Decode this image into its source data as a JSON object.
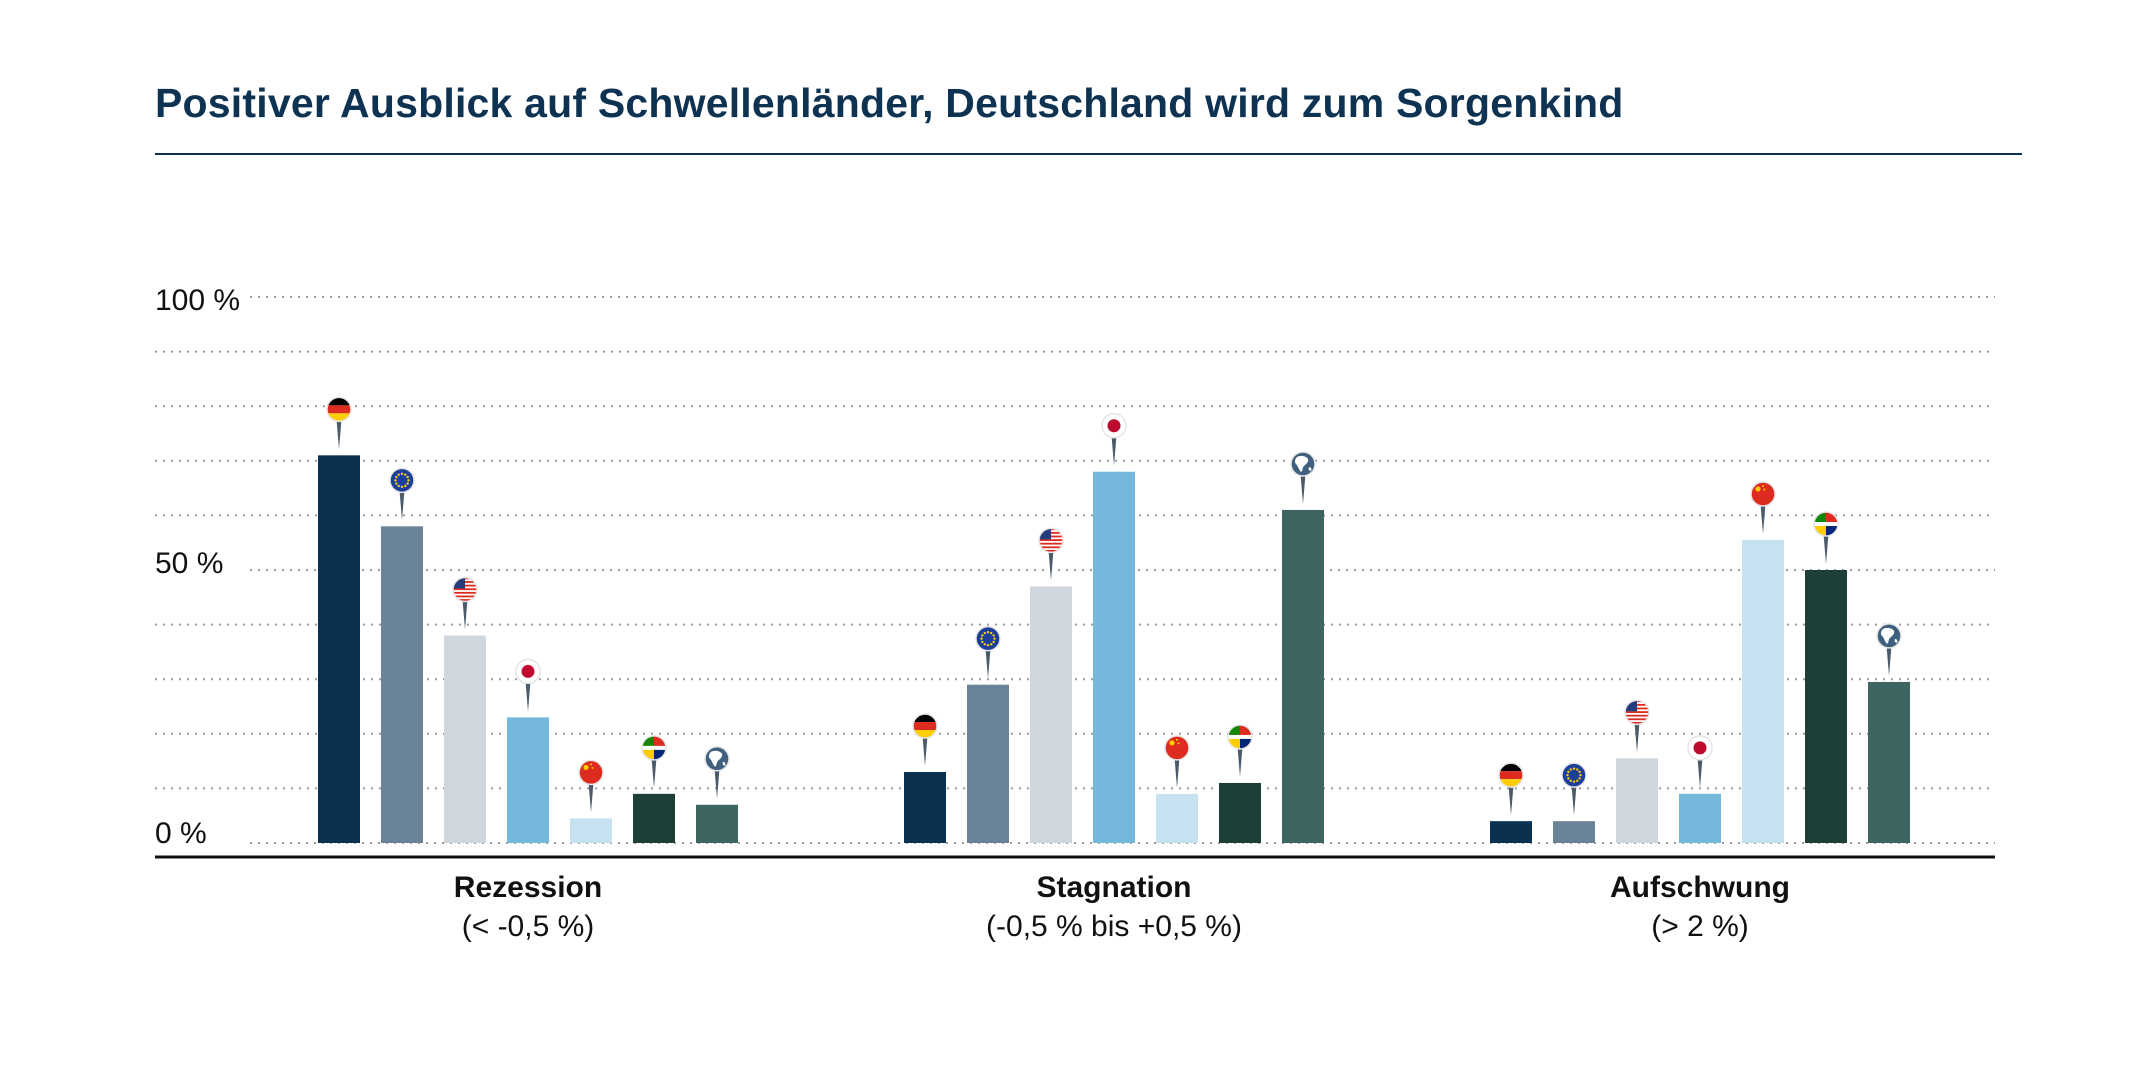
{
  "chart_data": {
    "type": "bar",
    "title": "Positiver Ausblick auf Schwellenländer, Deutschland wird zum Sorgenkind",
    "xlabel": "",
    "ylabel": "",
    "ylim": [
      0,
      100
    ],
    "y_ticks": [
      {
        "value": 0,
        "label": "0 %"
      },
      {
        "value": 50,
        "label": "50 %"
      },
      {
        "value": 100,
        "label": "100 %"
      }
    ],
    "grid": true,
    "grid_step": 10,
    "legend": "none",
    "categories": [
      {
        "label": "Rezession",
        "sublabel": "(< -0,5 %)"
      },
      {
        "label": "Stagnation",
        "sublabel": "(-0,5 % bis +0,5 %)"
      },
      {
        "label": "Aufschwung",
        "sublabel": "(> 2 %)"
      }
    ],
    "series": [
      {
        "name": "Deutschland",
        "icon": "germany-flag-pin-icon",
        "color": "#0b3150",
        "values": [
          71,
          13,
          4
        ]
      },
      {
        "name": "Eurozone",
        "icon": "eu-flag-pin-icon",
        "color": "#6a8398",
        "values": [
          58,
          29,
          4
        ]
      },
      {
        "name": "USA",
        "icon": "usa-flag-pin-icon",
        "color": "#cfd6dd",
        "values": [
          38,
          47,
          15.5
        ]
      },
      {
        "name": "Japan",
        "icon": "japan-flag-pin-icon",
        "color": "#74b9dc",
        "values": [
          23,
          68,
          9
        ]
      },
      {
        "name": "China",
        "icon": "china-flag-pin-icon",
        "color": "#c6e2f1",
        "values": [
          4.5,
          9,
          55.5
        ]
      },
      {
        "name": "Schwellenländer",
        "icon": "emerging-markets-flags-pin-icon",
        "color": "#1e3f38",
        "values": [
          9,
          11,
          50
        ]
      },
      {
        "name": "Welt",
        "icon": "globe-pin-icon",
        "color": "#3e6561",
        "values": [
          7,
          61,
          29.5
        ]
      }
    ]
  },
  "colors": {
    "title": "#0e3352",
    "axis": "#111111",
    "grid": "#9a9a9a",
    "pin_stem": "#4b5b69",
    "flag_red": "#dd2b1f",
    "flag_gold": "#ffce00",
    "eu_blue": "#1d3f9c",
    "us_blue": "#243b7c",
    "japan_red": "#bf0a30",
    "globe_blue": "#3f5f7f"
  }
}
